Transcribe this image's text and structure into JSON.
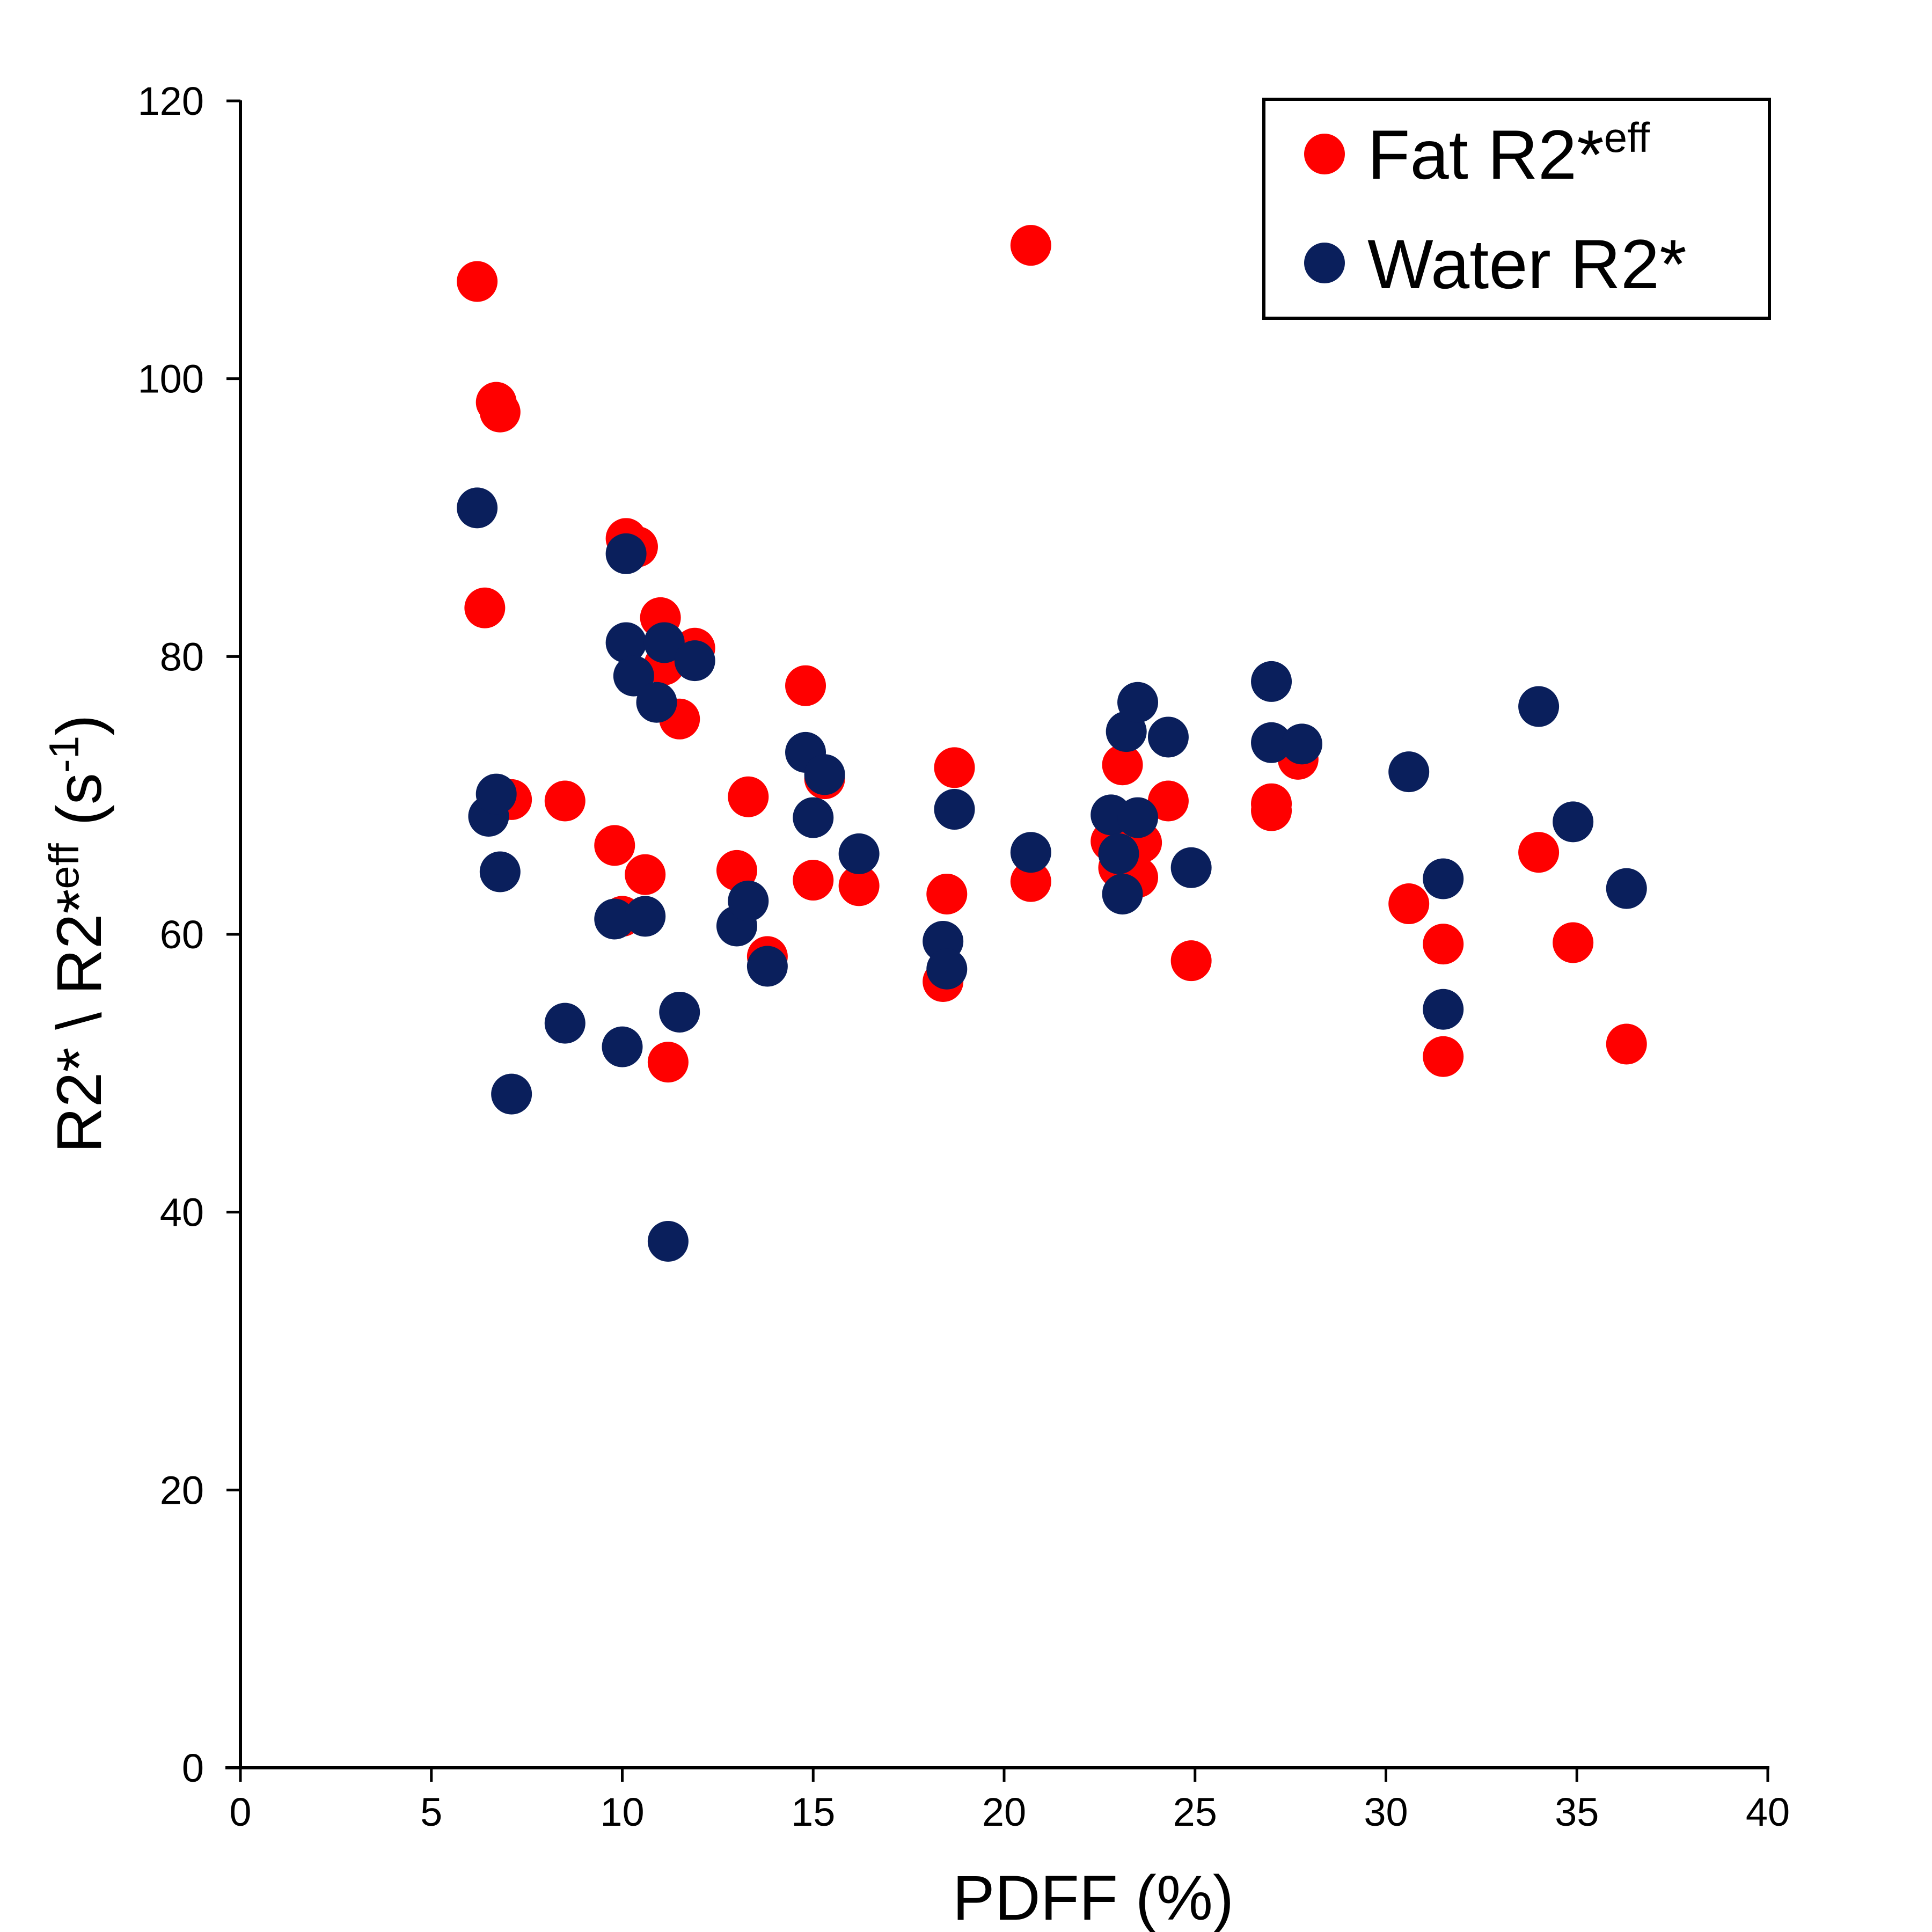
{
  "chart_data": {
    "type": "scatter",
    "xlabel": "PDFF (%)",
    "ylabel": {
      "main": "R2* \\ R2*",
      "sup1": "eff",
      "unit_open": " (s",
      "sup2": "-1",
      "unit_close": ")"
    },
    "xlim": [
      0,
      40
    ],
    "ylim": [
      0,
      120
    ],
    "x_ticks": [
      "0",
      "5",
      "10",
      "15",
      "20",
      "25",
      "30",
      "35",
      "40"
    ],
    "y_ticks": [
      "0",
      "20",
      "40",
      "60",
      "80",
      "100",
      "120"
    ],
    "grid": false,
    "legend_position": "top-right",
    "colors": {
      "fat": "#ff0000",
      "water": "#0a1f5c"
    },
    "series": [
      {
        "name": "Fat R2*",
        "name_sup": "eff",
        "color": "#ff0000",
        "points": [
          [
            6.2,
            107.0
          ],
          [
            6.4,
            83.5
          ],
          [
            6.7,
            98.3
          ],
          [
            6.8,
            97.6
          ],
          [
            7.1,
            69.7
          ],
          [
            8.5,
            69.6
          ],
          [
            9.8,
            66.4
          ],
          [
            10.0,
            61.3
          ],
          [
            10.1,
            88.5
          ],
          [
            10.4,
            87.9
          ],
          [
            10.6,
            64.3
          ],
          [
            11.0,
            82.8
          ],
          [
            11.1,
            79.4
          ],
          [
            11.2,
            50.8
          ],
          [
            11.5,
            75.5
          ],
          [
            11.9,
            80.6
          ],
          [
            13.0,
            64.6
          ],
          [
            13.3,
            69.9
          ],
          [
            13.8,
            58.4
          ],
          [
            14.8,
            77.9
          ],
          [
            15.0,
            63.9
          ],
          [
            15.3,
            71.2
          ],
          [
            16.2,
            63.5
          ],
          [
            18.4,
            56.6
          ],
          [
            18.5,
            62.9
          ],
          [
            18.7,
            72.0
          ],
          [
            20.7,
            109.6
          ],
          [
            20.7,
            63.8
          ],
          [
            22.8,
            66.7
          ],
          [
            23.0,
            64.8
          ],
          [
            23.1,
            72.2
          ],
          [
            23.5,
            64.1
          ],
          [
            23.6,
            66.6
          ],
          [
            24.3,
            69.6
          ],
          [
            24.9,
            58.1
          ],
          [
            27.0,
            68.9
          ],
          [
            27.0,
            69.4
          ],
          [
            27.7,
            72.6
          ],
          [
            30.6,
            62.2
          ],
          [
            31.5,
            59.3
          ],
          [
            31.5,
            51.2
          ],
          [
            34.0,
            65.9
          ],
          [
            34.9,
            59.4
          ],
          [
            36.3,
            52.1
          ]
        ]
      },
      {
        "name": "Water R2*",
        "color": "#0a1f5c",
        "points": [
          [
            6.2,
            90.7
          ],
          [
            6.5,
            68.5
          ],
          [
            6.7,
            70.1
          ],
          [
            6.8,
            64.5
          ],
          [
            7.1,
            48.5
          ],
          [
            8.5,
            53.6
          ],
          [
            9.8,
            61.1
          ],
          [
            10.0,
            51.9
          ],
          [
            10.1,
            87.4
          ],
          [
            10.1,
            81.0
          ],
          [
            10.3,
            78.6
          ],
          [
            10.6,
            61.3
          ],
          [
            10.9,
            76.7
          ],
          [
            11.1,
            81.0
          ],
          [
            11.2,
            37.9
          ],
          [
            11.5,
            54.4
          ],
          [
            11.9,
            79.7
          ],
          [
            13.0,
            60.6
          ],
          [
            13.3,
            62.4
          ],
          [
            13.8,
            57.7
          ],
          [
            14.8,
            73.1
          ],
          [
            15.0,
            68.4
          ],
          [
            15.3,
            71.5
          ],
          [
            16.2,
            65.8
          ],
          [
            18.4,
            59.5
          ],
          [
            18.5,
            57.5
          ],
          [
            18.7,
            69.0
          ],
          [
            20.7,
            65.9
          ],
          [
            22.8,
            68.6
          ],
          [
            23.0,
            65.8
          ],
          [
            23.1,
            62.9
          ],
          [
            23.2,
            74.6
          ],
          [
            23.5,
            68.4
          ],
          [
            23.5,
            76.7
          ],
          [
            24.3,
            74.2
          ],
          [
            24.9,
            64.8
          ],
          [
            27.0,
            78.2
          ],
          [
            27.0,
            73.8
          ],
          [
            27.8,
            73.7
          ],
          [
            30.6,
            71.7
          ],
          [
            31.5,
            64.0
          ],
          [
            31.5,
            54.6
          ],
          [
            34.0,
            76.4
          ],
          [
            34.9,
            68.1
          ],
          [
            36.3,
            63.3
          ]
        ]
      }
    ]
  }
}
